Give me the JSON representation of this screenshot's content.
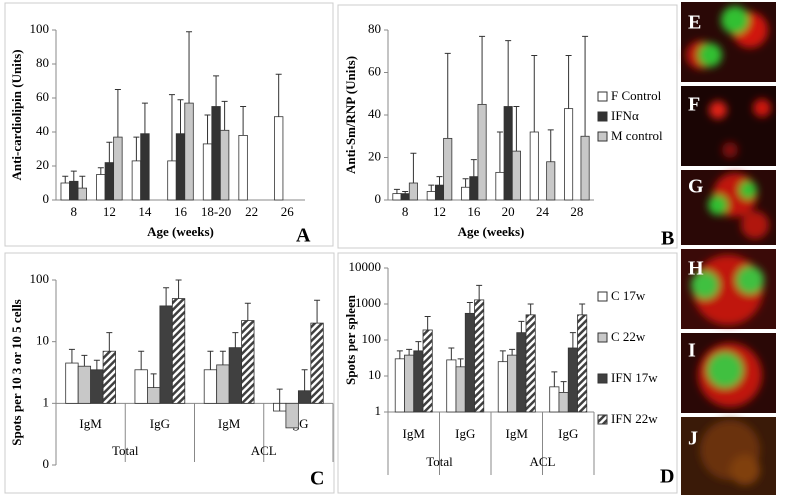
{
  "chart_data": [
    {
      "type": "bar",
      "panel": "A",
      "ylabel": "Anti-cardiolipin (Units)",
      "xlabel": "Age (weeks)",
      "categories": [
        "8",
        "12",
        "14",
        "16",
        "18-20",
        "22",
        "26"
      ],
      "series": [
        {
          "color": "#ffffff",
          "values": [
            10,
            15,
            23,
            23,
            33,
            38,
            49
          ],
          "errors": [
            4,
            4,
            14,
            39,
            17,
            17,
            25
          ]
        },
        {
          "color": "#333333",
          "values": [
            11,
            22,
            39,
            39,
            55,
            null,
            null
          ],
          "errors": [
            6,
            12,
            18,
            20,
            18,
            null,
            null
          ]
        },
        {
          "color": "#c8c8c8",
          "values": [
            7,
            37,
            null,
            57,
            41,
            null,
            null
          ],
          "errors": [
            7,
            28,
            null,
            42,
            17,
            null,
            null
          ]
        }
      ],
      "ylim": [
        0,
        100
      ],
      "yticks": [
        0,
        20,
        40,
        60,
        80,
        100
      ],
      "grid": false
    },
    {
      "type": "bar",
      "panel": "B",
      "ylabel": "Anti-Sm/RNP (Units)",
      "xlabel": "Age (weeks)",
      "categories": [
        "8",
        "12",
        "16",
        "20",
        "24",
        "28"
      ],
      "series": [
        {
          "name": "F Control",
          "color": "#ffffff",
          "values": [
            3,
            4,
            6,
            13,
            32,
            43
          ],
          "errors": [
            2,
            3,
            4,
            19,
            36,
            25
          ]
        },
        {
          "name": "IFNα",
          "color": "#333333",
          "values": [
            3,
            7,
            11,
            44,
            null,
            null
          ],
          "errors": [
            1,
            4,
            8,
            31,
            null,
            null
          ]
        },
        {
          "name": "M control",
          "color": "#c8c8c8",
          "values": [
            8,
            29,
            45,
            23,
            18,
            30
          ],
          "errors": [
            14,
            40,
            32,
            21,
            15,
            47
          ]
        }
      ],
      "ylim": [
        0,
        80
      ],
      "yticks": [
        0,
        20,
        40,
        60,
        80
      ],
      "grid": false,
      "legend": "right"
    },
    {
      "type": "bar",
      "panel": "C",
      "ylabel": "Spots per 10 3 or 10 5 cells",
      "log": true,
      "categories": [
        "IgM",
        "IgG",
        "IgM",
        "IgG"
      ],
      "groups": [
        "Total",
        "ACL"
      ],
      "series": [
        {
          "color": "#ffffff",
          "values": [
            4.5,
            3.5,
            3.5,
            0.75
          ],
          "errors": [
            3,
            3.5,
            3.5,
            0.95
          ]
        },
        {
          "color": "#c8c8c8",
          "values": [
            4,
            1.8,
            4.2,
            0.4
          ],
          "errors": [
            2,
            1.2,
            2.8,
            null
          ]
        },
        {
          "color": "#404040",
          "values": [
            3.5,
            38,
            8,
            1.6
          ],
          "errors": [
            1.5,
            37,
            6,
            1.9
          ]
        },
        {
          "color": "#404040",
          "hatch": true,
          "values": [
            7,
            50,
            22,
            20
          ],
          "errors": [
            7,
            50,
            20,
            27
          ]
        }
      ],
      "ylim": [
        0.1,
        100
      ],
      "yticks": [
        {
          "value": 0.1,
          "label": "0"
        },
        1,
        10,
        100
      ],
      "grid": false
    },
    {
      "type": "bar",
      "panel": "D",
      "ylabel": "Spots per spleen",
      "log": true,
      "categories": [
        "IgM",
        "IgG",
        "IgM",
        "IgG"
      ],
      "groups": [
        "Total",
        "ACL"
      ],
      "series": [
        {
          "name": "C 17w",
          "color": "#ffffff",
          "values": [
            30,
            28,
            25,
            5
          ],
          "errors": [
            20,
            32,
            25,
            8
          ]
        },
        {
          "name": "C 22w",
          "color": "#c8c8c8",
          "values": [
            38,
            18,
            38,
            3.5
          ],
          "errors": [
            17,
            12,
            17,
            3.5
          ]
        },
        {
          "name": "IFN 17w",
          "color": "#404040",
          "values": [
            50,
            550,
            160,
            60
          ],
          "errors": [
            40,
            550,
            170,
            100
          ]
        },
        {
          "name": "IFN 22w",
          "color": "#404040",
          "hatch": true,
          "values": [
            190,
            1300,
            500,
            500
          ],
          "errors": [
            260,
            2000,
            500,
            500
          ]
        }
      ],
      "ylim": [
        1,
        10000
      ],
      "yticks": [
        1,
        10,
        100,
        1000,
        10000
      ],
      "grid": false,
      "legend": "right"
    }
  ],
  "image_panels": [
    {
      "label": "E"
    },
    {
      "label": "F"
    },
    {
      "label": "G"
    },
    {
      "label": "H"
    },
    {
      "label": "I"
    },
    {
      "label": "J"
    }
  ]
}
